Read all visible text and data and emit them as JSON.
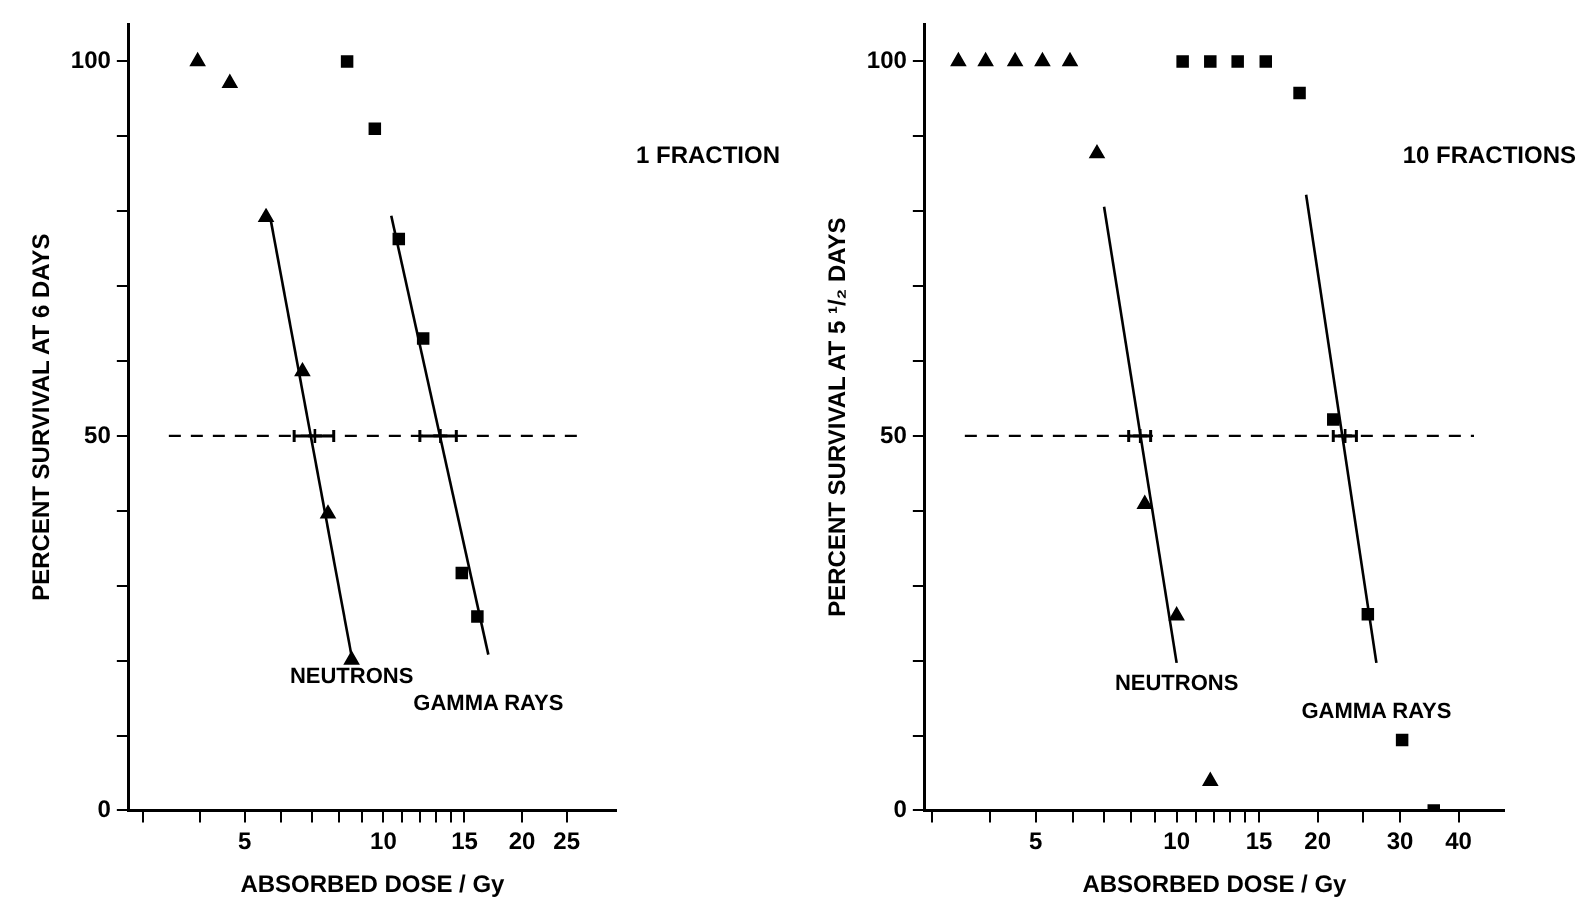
{
  "chart_data": [
    {
      "type": "scatter",
      "xlabel": "ABSORBED DOSE / Gy",
      "ylabel": "PERCENT SURVIVAL AT 6 DAYS",
      "log": "x",
      "grid": false,
      "legend": false,
      "xlim": [
        2.8,
        32
      ],
      "xticks": [
        {
          "value": 3,
          "label": null
        },
        {
          "value": 4,
          "label": null
        },
        5,
        {
          "value": 6,
          "label": null
        },
        {
          "value": 7,
          "label": null
        },
        {
          "value": 8,
          "label": null
        },
        {
          "value": 9,
          "label": null
        },
        10,
        {
          "value": 11,
          "label": null
        },
        {
          "value": 12,
          "label": null
        },
        {
          "value": 13,
          "label": null
        },
        {
          "value": 14,
          "label": null
        },
        15,
        20,
        25
      ],
      "ylim": [
        0,
        105
      ],
      "yticks": [
        0,
        {
          "value": 10,
          "label": null
        },
        {
          "value": 20,
          "label": null
        },
        {
          "value": 30,
          "label": null
        },
        {
          "value": 40,
          "label": null
        },
        50,
        {
          "value": 60,
          "label": null
        },
        {
          "value": 70,
          "label": null
        },
        {
          "value": 80,
          "label": null
        },
        {
          "value": 90,
          "label": null
        },
        100
      ],
      "annotations": [
        "1 FRACTION"
      ],
      "ref_lines": [
        {
          "axis": "y",
          "value": 50,
          "line_style": "dashed",
          "color": "#000000"
        }
      ],
      "series": [
        {
          "type": "scatter",
          "marker": "triangle",
          "color": "#000000",
          "x": [
            3.95,
            4.64,
            5.56,
            6.67,
            7.58,
            8.53
          ],
          "values": [
            100,
            97.1,
            79.2,
            58.6,
            39.6,
            20.1
          ]
        },
        {
          "type": "scatter",
          "marker": "square",
          "color": "#000000",
          "x": [
            8.34,
            9.58,
            10.8,
            12.2,
            14.8,
            16.0
          ],
          "values": [
            100,
            91,
            76.3,
            63,
            31.7,
            25.9
          ]
        },
        {
          "type": "line",
          "marker": "none",
          "name": "NEUTRONS",
          "color": "#000000",
          "x": [
            5.69,
            8.53
          ],
          "values": [
            78.9,
            20.6
          ]
        },
        {
          "type": "line",
          "marker": "none",
          "name": "GAMMA RAYS",
          "color": "#000000",
          "x": [
            10.4,
            16.9
          ],
          "values": [
            79.4,
            20.8
          ]
        },
        {
          "type": "scatter",
          "marker": "cross",
          "color": "#000000",
          "x": [
            7.1,
            13.3
          ],
          "values": [
            50,
            50
          ],
          "xerrors": [
            [
              6.4,
              7.8
            ],
            [
              12.0,
              14.4
            ]
          ]
        }
      ]
    },
    {
      "type": "scatter",
      "xlabel": "ABSORBED DOSE / Gy",
      "ylabel": "PERCENT SURVIVAL AT 5 ¹/₂ DAYS",
      "log": "x",
      "grid": false,
      "legend": false,
      "xlim": [
        2.9,
        50
      ],
      "xticks": [
        {
          "value": 3,
          "label": null
        },
        {
          "value": 4,
          "label": null
        },
        5,
        {
          "value": 6,
          "label": null
        },
        {
          "value": 7,
          "label": null
        },
        {
          "value": 8,
          "label": null
        },
        {
          "value": 9,
          "label": null
        },
        10,
        {
          "value": 11,
          "label": null
        },
        {
          "value": 12,
          "label": null
        },
        {
          "value": 13,
          "label": null
        },
        {
          "value": 14,
          "label": null
        },
        15,
        20,
        {
          "value": 25,
          "label": null
        },
        30,
        40
      ],
      "ylim": [
        0,
        105
      ],
      "yticks": [
        0,
        {
          "value": 10,
          "label": null
        },
        {
          "value": 20,
          "label": null
        },
        {
          "value": 30,
          "label": null
        },
        {
          "value": 40,
          "label": null
        },
        50,
        {
          "value": 60,
          "label": null
        },
        {
          "value": 70,
          "label": null
        },
        {
          "value": 80,
          "label": null
        },
        {
          "value": 90,
          "label": null
        },
        100
      ],
      "annotations": [
        "10 FRACTIONS"
      ],
      "ref_lines": [
        {
          "axis": "y",
          "value": 50,
          "line_style": "dashed",
          "color": "#000000"
        }
      ],
      "series": [
        {
          "type": "scatter",
          "marker": "triangle",
          "color": "#000000",
          "x": [
            3.42,
            3.91,
            4.52,
            5.17,
            5.92,
            6.76,
            8.55,
            10.0,
            11.8
          ],
          "values": [
            100,
            100,
            100,
            100,
            100,
            87.7,
            40.9,
            26,
            3.9
          ]
        },
        {
          "type": "scatter",
          "marker": "square",
          "color": "#000000",
          "x": [
            10.3,
            11.8,
            13.5,
            15.5,
            18.3,
            21.6,
            25.6,
            30.3,
            35.4
          ],
          "values": [
            100,
            100,
            100,
            100,
            95.8,
            52.2,
            26.2,
            9.4,
            0
          ]
        },
        {
          "type": "line",
          "marker": "none",
          "name": "NEUTRONS",
          "color": "#000000",
          "x": [
            7.0,
            10.0
          ],
          "values": [
            80.6,
            19.7
          ]
        },
        {
          "type": "line",
          "marker": "none",
          "name": "GAMMA RAYS",
          "color": "#000000",
          "x": [
            18.9,
            26.7
          ],
          "values": [
            82.2,
            19.7
          ]
        },
        {
          "type": "scatter",
          "marker": "cross",
          "color": "#000000",
          "x": [
            8.36,
            22.9
          ],
          "values": [
            50,
            50
          ],
          "xerrors": [
            [
              7.9,
              8.8
            ],
            [
              21.6,
              24.2
            ]
          ]
        }
      ]
    }
  ]
}
